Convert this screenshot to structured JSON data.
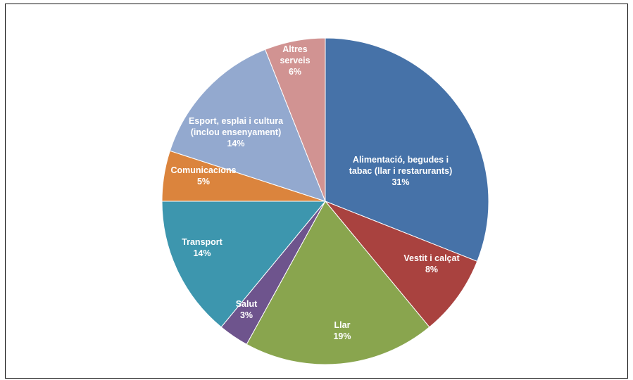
{
  "chart_data": {
    "type": "pie",
    "title": "",
    "slices": [
      {
        "label_lines": [
          "Alimentació, begudes i",
          "tabac (llar i restarurants)"
        ],
        "value": 31,
        "value_label": "31%",
        "color": "#4672A8"
      },
      {
        "label_lines": [
          "Vestit i calçat"
        ],
        "value": 8,
        "value_label": "8%",
        "color": "#A9423F"
      },
      {
        "label_lines": [
          "Llar"
        ],
        "value": 19,
        "value_label": "19%",
        "color": "#89A54E"
      },
      {
        "label_lines": [
          "Salut"
        ],
        "value": 3,
        "value_label": "3%",
        "color": "#6E548D"
      },
      {
        "label_lines": [
          "Transport"
        ],
        "value": 14,
        "value_label": "14%",
        "color": "#3D96AE"
      },
      {
        "label_lines": [
          "Comunicacions"
        ],
        "value": 5,
        "value_label": "5%",
        "color": "#DB843D"
      },
      {
        "label_lines": [
          "Esport, esplai i cultura",
          "(inclou ensenyament)"
        ],
        "value": 14,
        "value_label": "14%",
        "color": "#93A9CF"
      },
      {
        "label_lines": [
          "Altres",
          "serveis"
        ],
        "value": 6,
        "value_label": "6%",
        "color": "#D19392"
      }
    ],
    "start_angle_deg": 0,
    "direction": "clockwise",
    "legend": "none"
  }
}
